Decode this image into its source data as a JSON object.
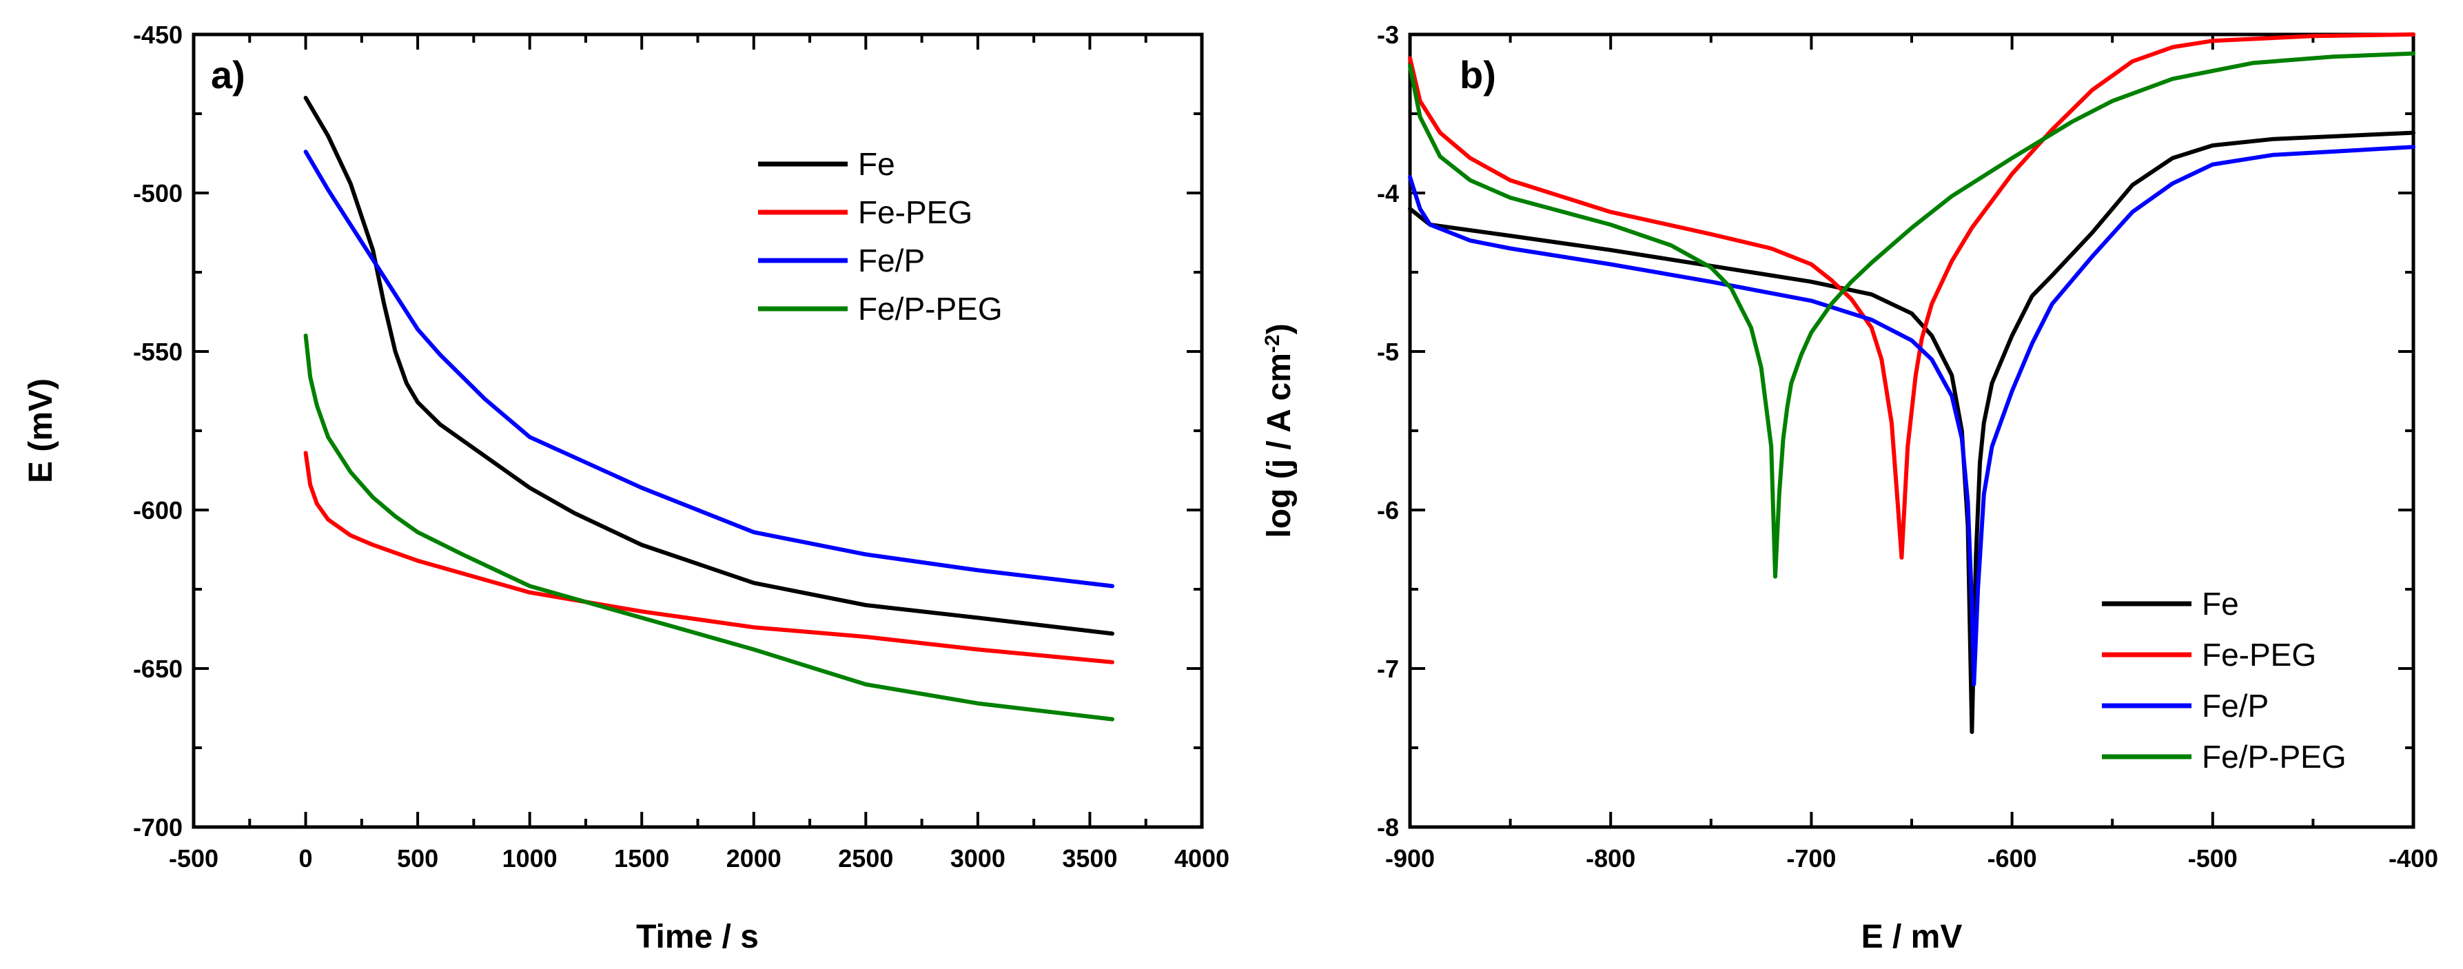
{
  "chart_data": [
    {
      "type": "line",
      "panel_label": "a)",
      "xlabel": "Time / s",
      "ylabel": "E (mV)",
      "xlim": [
        -500,
        4000
      ],
      "ylim": [
        -700,
        -450
      ],
      "xticks": [
        -500,
        0,
        500,
        1000,
        1500,
        2000,
        2500,
        3000,
        3500,
        4000
      ],
      "yticks": [
        -700,
        -650,
        -600,
        -550,
        -500,
        -450
      ],
      "legend_position": "top-right",
      "series": [
        {
          "name": "Fe",
          "color": "#000000",
          "x": [
            0,
            100,
            200,
            300,
            350,
            400,
            450,
            500,
            600,
            700,
            800,
            1000,
            1200,
            1500,
            2000,
            2500,
            3000,
            3600
          ],
          "y": [
            -470,
            -482,
            -497,
            -518,
            -535,
            -550,
            -560,
            -566,
            -573,
            -578,
            -583,
            -593,
            -601,
            -611,
            -623,
            -630,
            -634,
            -639
          ]
        },
        {
          "name": "Fe-PEG",
          "color": "#ff0000",
          "x": [
            0,
            20,
            50,
            100,
            200,
            300,
            500,
            800,
            1000,
            1500,
            2000,
            2500,
            3000,
            3600
          ],
          "y": [
            -582,
            -592,
            -598,
            -603,
            -608,
            -611,
            -616,
            -622,
            -626,
            -632,
            -637,
            -640,
            -644,
            -648
          ]
        },
        {
          "name": "Fe/P",
          "color": "#0000ff",
          "x": [
            0,
            100,
            200,
            300,
            400,
            500,
            600,
            800,
            1000,
            1500,
            2000,
            2500,
            3000,
            3600
          ],
          "y": [
            -487,
            -499,
            -510,
            -521,
            -532,
            -543,
            -551,
            -565,
            -577,
            -593,
            -607,
            -614,
            -619,
            -624
          ]
        },
        {
          "name": "Fe/P-PEG",
          "color": "#008000",
          "x": [
            0,
            20,
            50,
            100,
            200,
            300,
            400,
            500,
            700,
            1000,
            1500,
            2000,
            2500,
            3000,
            3600
          ],
          "y": [
            -545,
            -558,
            -567,
            -577,
            -588,
            -596,
            -602,
            -607,
            -614,
            -624,
            -634,
            -644,
            -655,
            -661,
            -666
          ]
        }
      ]
    },
    {
      "type": "line",
      "panel_label": "b)",
      "xlabel": "E / mV",
      "ylabel_prefix": "log (j / A cm",
      "ylabel_sup": "-2",
      "ylabel_suffix": ")",
      "xlim": [
        -900,
        -400
      ],
      "ylim": [
        -8,
        -3
      ],
      "xticks": [
        -900,
        -800,
        -700,
        -600,
        -500,
        -400
      ],
      "yticks": [
        -8,
        -7,
        -6,
        -5,
        -4,
        -3
      ],
      "legend_position": "bottom-right",
      "series": [
        {
          "name": "Fe",
          "color": "#000000",
          "x": [
            -900,
            -890,
            -850,
            -800,
            -750,
            -700,
            -670,
            -650,
            -640,
            -630,
            -625,
            -622,
            -620,
            -618,
            -616,
            -614,
            -610,
            -600,
            -590,
            -580,
            -560,
            -540,
            -520,
            -500,
            -470,
            -400
          ],
          "y": [
            -4.1,
            -4.2,
            -4.27,
            -4.36,
            -4.46,
            -4.56,
            -4.64,
            -4.76,
            -4.9,
            -5.15,
            -5.5,
            -6.1,
            -7.4,
            -6.3,
            -5.7,
            -5.45,
            -5.2,
            -4.9,
            -4.65,
            -4.52,
            -4.25,
            -3.95,
            -3.78,
            -3.7,
            -3.66,
            -3.62
          ]
        },
        {
          "name": "Fe-PEG",
          "color": "#ff0000",
          "x": [
            -900,
            -895,
            -885,
            -870,
            -850,
            -800,
            -750,
            -720,
            -700,
            -690,
            -680,
            -670,
            -665,
            -660,
            -657,
            -655,
            -652,
            -648,
            -645,
            -640,
            -630,
            -620,
            -600,
            -580,
            -560,
            -540,
            -520,
            -500,
            -450,
            -400
          ],
          "y": [
            -3.15,
            -3.42,
            -3.62,
            -3.78,
            -3.92,
            -4.12,
            -4.26,
            -4.35,
            -4.45,
            -4.55,
            -4.67,
            -4.85,
            -5.05,
            -5.45,
            -5.95,
            -6.3,
            -5.6,
            -5.15,
            -4.92,
            -4.7,
            -4.43,
            -4.22,
            -3.88,
            -3.6,
            -3.35,
            -3.17,
            -3.08,
            -3.04,
            -3.01,
            -3.0
          ]
        },
        {
          "name": "Fe/P",
          "color": "#0000ff",
          "x": [
            -900,
            -898,
            -895,
            -890,
            -870,
            -850,
            -800,
            -750,
            -700,
            -670,
            -650,
            -640,
            -630,
            -625,
            -622,
            -620,
            -619,
            -617,
            -614,
            -610,
            -600,
            -590,
            -580,
            -560,
            -540,
            -520,
            -500,
            -470,
            -400
          ],
          "y": [
            -3.9,
            -3.98,
            -4.1,
            -4.2,
            -4.3,
            -4.35,
            -4.45,
            -4.56,
            -4.68,
            -4.8,
            -4.93,
            -5.05,
            -5.28,
            -5.55,
            -5.95,
            -6.6,
            -7.1,
            -6.5,
            -5.9,
            -5.6,
            -5.25,
            -4.95,
            -4.7,
            -4.4,
            -4.12,
            -3.94,
            -3.82,
            -3.76,
            -3.71
          ]
        },
        {
          "name": "Fe/P-PEG",
          "color": "#008000",
          "x": [
            -900,
            -895,
            -885,
            -870,
            -850,
            -800,
            -770,
            -750,
            -740,
            -730,
            -725,
            -720,
            -718,
            -716,
            -714,
            -712,
            -710,
            -705,
            -700,
            -690,
            -680,
            -670,
            -650,
            -630,
            -600,
            -570,
            -550,
            -520,
            -480,
            -440,
            -400
          ],
          "y": [
            -3.2,
            -3.52,
            -3.77,
            -3.92,
            -4.03,
            -4.2,
            -4.33,
            -4.47,
            -4.6,
            -4.85,
            -5.1,
            -5.6,
            -6.42,
            -5.9,
            -5.55,
            -5.35,
            -5.2,
            -5.02,
            -4.88,
            -4.7,
            -4.56,
            -4.44,
            -4.22,
            -4.02,
            -3.78,
            -3.55,
            -3.42,
            -3.28,
            -3.18,
            -3.14,
            -3.12
          ]
        }
      ]
    }
  ]
}
